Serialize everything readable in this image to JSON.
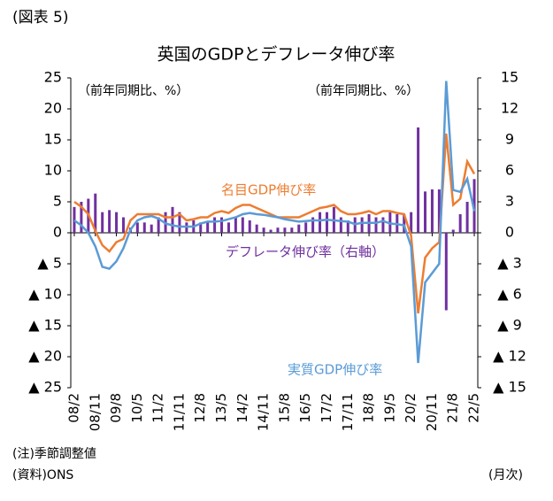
{
  "chart_data": {
    "type": "combo",
    "figure_label": "(図表 5)",
    "title": "英国のGDPとデフレータ伸び率",
    "left_unit": "（前年同期比、%）",
    "right_unit": "（前年同期比、%）",
    "note": "(注)季節調整値",
    "source": "(資料)ONS",
    "x_unit": "(月次)",
    "categories": [
      "08/2",
      null,
      null,
      "08/11",
      null,
      null,
      "09/8",
      null,
      null,
      "10/5",
      null,
      null,
      "11/2",
      null,
      null,
      "11/11",
      null,
      null,
      "12/8",
      null,
      null,
      "13/5",
      null,
      null,
      "14/2",
      null,
      null,
      "14/11",
      null,
      null,
      "15/8",
      null,
      null,
      "16/5",
      null,
      null,
      "17/2",
      null,
      null,
      "17/11",
      null,
      null,
      "18/8",
      null,
      null,
      "19/5",
      null,
      null,
      "20/2",
      null,
      null,
      "20/11",
      null,
      null,
      "21/8",
      null,
      null,
      "22/5"
    ],
    "series": [
      {
        "name": "デフレータ伸び率（右軸）",
        "color": "#7030a0",
        "axis": "y2",
        "kind": "bar",
        "values": [
          2.5,
          3.0,
          3.3,
          3.8,
          2.0,
          2.2,
          2.0,
          1.5,
          0.5,
          1.0,
          1.0,
          0.8,
          1.5,
          2.0,
          2.5,
          2.0,
          1.0,
          1.2,
          1.0,
          1.0,
          1.5,
          1.5,
          1.0,
          1.5,
          1.5,
          1.2,
          0.8,
          0.5,
          0.3,
          0.5,
          0.5,
          0.5,
          0.8,
          1.0,
          1.5,
          2.0,
          2.0,
          2.5,
          1.5,
          1.2,
          1.5,
          1.5,
          1.8,
          1.5,
          1.5,
          2.0,
          1.8,
          1.8,
          2.0,
          10.2,
          4.0,
          4.2,
          4.2,
          -7.5,
          0.3,
          1.8,
          3.0,
          5.2
        ]
      },
      {
        "name": "名目GDP伸び率",
        "color": "#ed7d31",
        "kind": "line",
        "values": [
          5.0,
          4.2,
          3.0,
          0.3,
          -2.0,
          -3.0,
          -1.5,
          -1.0,
          2.0,
          3.0,
          3.0,
          3.0,
          3.0,
          2.5,
          2.5,
          3.0,
          2.0,
          2.2,
          2.5,
          2.5,
          3.2,
          3.5,
          3.2,
          4.0,
          4.5,
          4.5,
          4.0,
          3.5,
          3.0,
          2.5,
          2.5,
          2.5,
          2.5,
          3.0,
          3.5,
          4.0,
          4.2,
          4.5,
          3.5,
          3.0,
          3.0,
          3.2,
          3.5,
          3.0,
          3.5,
          3.5,
          3.2,
          3.0,
          -0.5,
          -13.0,
          -4.0,
          -2.5,
          -1.5,
          16.0,
          4.5,
          5.5,
          11.5,
          9.5
        ]
      },
      {
        "name": "実質GDP伸び率",
        "color": "#5b9bd5",
        "kind": "line",
        "values": [
          2.0,
          1.2,
          0.0,
          -2.2,
          -5.5,
          -5.8,
          -4.6,
          -2.5,
          0.5,
          2.0,
          2.5,
          2.7,
          2.3,
          1.5,
          1.2,
          1.0,
          1.0,
          1.0,
          1.5,
          1.8,
          1.8,
          1.9,
          2.2,
          2.5,
          3.0,
          3.2,
          3.0,
          2.9,
          2.7,
          2.5,
          2.2,
          2.0,
          1.8,
          1.9,
          2.0,
          2.0,
          2.1,
          2.0,
          1.9,
          1.8,
          1.4,
          1.6,
          1.6,
          1.6,
          1.9,
          1.5,
          1.4,
          1.2,
          -2.2,
          -21.0,
          -8.0,
          -6.5,
          -5.0,
          24.5,
          6.9,
          6.6,
          8.7,
          3.5
        ]
      }
    ],
    "ylim": [
      -25,
      25
    ],
    "yticks": [
      {
        "value": -25,
        "label": "▲ 25"
      },
      {
        "value": -20,
        "label": "▲ 20"
      },
      {
        "value": -15,
        "label": "▲ 15"
      },
      {
        "value": -10,
        "label": "▲ 10"
      },
      {
        "value": -5,
        "label": "▲ 5"
      },
      0,
      5,
      10,
      15,
      20,
      25
    ],
    "y2lim": [
      -15,
      15
    ],
    "y2ticks": [
      {
        "value": -15,
        "label": "▲ 15"
      },
      {
        "value": -12,
        "label": "▲ 12"
      },
      {
        "value": -9,
        "label": "▲ 9"
      },
      {
        "value": -6,
        "label": "▲ 6"
      },
      {
        "value": -3,
        "label": "▲ 3"
      },
      0,
      3,
      6,
      9,
      12,
      15
    ]
  }
}
